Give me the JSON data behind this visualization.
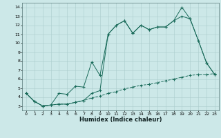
{
  "xlabel": "Humidex (Indice chaleur)",
  "bg_color": "#cce8e8",
  "line_color": "#1a6b5a",
  "grid_color": "#aacccc",
  "xlim": [
    -0.5,
    23.5
  ],
  "ylim": [
    2.5,
    14.5
  ],
  "xticks": [
    0,
    1,
    2,
    3,
    4,
    5,
    6,
    7,
    8,
    9,
    10,
    11,
    12,
    13,
    14,
    15,
    16,
    17,
    18,
    19,
    20,
    21,
    22,
    23
  ],
  "yticks": [
    3,
    4,
    5,
    6,
    7,
    8,
    9,
    10,
    11,
    12,
    13,
    14
  ],
  "line1_x": [
    0,
    1,
    2,
    3,
    4,
    5,
    6,
    7,
    8,
    9,
    10,
    11,
    12,
    13,
    14,
    15,
    16,
    17,
    18,
    19,
    20,
    21,
    22,
    23
  ],
  "line1_y": [
    4.4,
    3.5,
    3.0,
    3.1,
    3.2,
    3.2,
    3.4,
    3.6,
    3.9,
    4.1,
    4.4,
    4.6,
    4.9,
    5.1,
    5.3,
    5.4,
    5.6,
    5.8,
    6.0,
    6.2,
    6.4,
    6.5,
    6.5,
    6.6
  ],
  "line2_x": [
    0,
    1,
    2,
    3,
    4,
    5,
    6,
    7,
    8,
    9,
    10,
    11,
    12,
    13,
    14,
    15,
    16,
    17,
    18,
    19,
    20,
    21,
    22,
    23
  ],
  "line2_y": [
    4.4,
    3.5,
    3.0,
    3.1,
    4.4,
    4.3,
    5.2,
    5.1,
    7.9,
    6.4,
    11.0,
    12.0,
    12.5,
    11.1,
    12.0,
    11.5,
    11.8,
    11.8,
    12.5,
    13.0,
    12.7,
    10.3,
    7.8,
    6.5
  ],
  "line3_x": [
    0,
    1,
    2,
    3,
    4,
    5,
    6,
    7,
    8,
    9,
    10,
    11,
    12,
    13,
    14,
    15,
    16,
    17,
    18,
    19,
    20,
    21,
    22,
    23
  ],
  "line3_y": [
    4.4,
    3.5,
    3.0,
    3.1,
    3.2,
    3.2,
    3.4,
    3.6,
    4.4,
    4.7,
    11.0,
    12.0,
    12.5,
    11.1,
    12.0,
    11.5,
    11.8,
    11.8,
    12.5,
    14.0,
    12.7,
    10.3,
    7.8,
    6.5
  ],
  "xlabel_fontsize": 6,
  "tick_fontsize": 4.5
}
